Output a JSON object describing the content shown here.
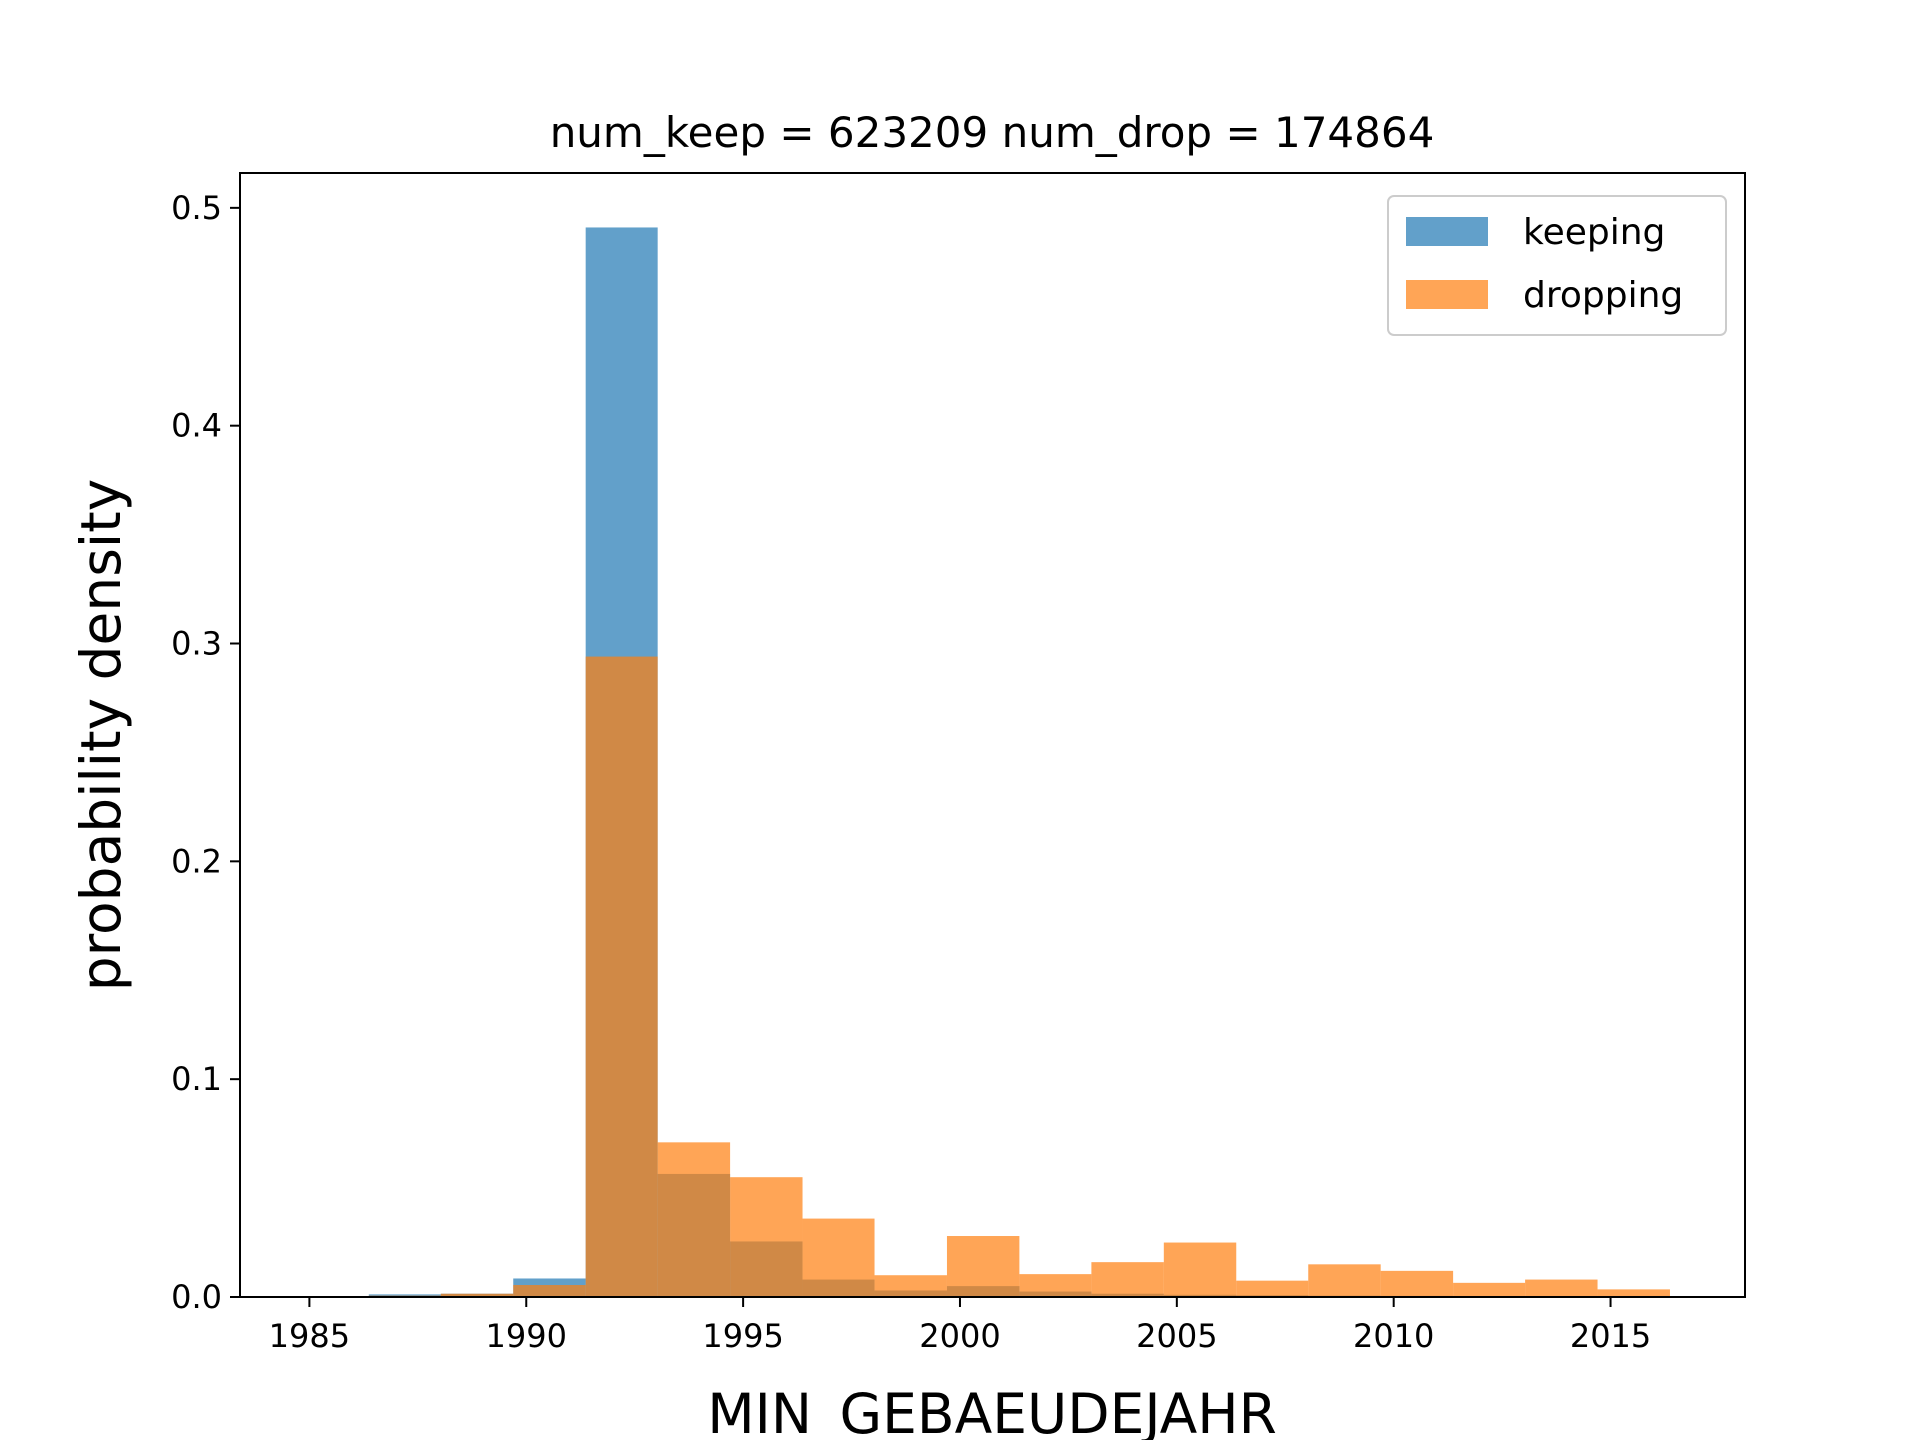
{
  "chart_data": {
    "type": "bar",
    "title": "num_keep = 623209  num_drop = 174864",
    "xlabel": "MIN_GEBAEUDEJAHR",
    "ylabel": "probability density",
    "xlim": [
      1983.4,
      2018.1
    ],
    "ylim": [
      0,
      0.516
    ],
    "xticks": [
      "1985",
      "1990",
      "1995",
      "2000",
      "2005",
      "2010",
      "2015"
    ],
    "yticks": [
      "0.0",
      "0.1",
      "0.2",
      "0.3",
      "0.4",
      "0.5"
    ],
    "grid": false,
    "legend_position": "top-right",
    "bin_edges": [
      1984.7,
      1986.37,
      1988.03,
      1989.7,
      1991.37,
      1993.03,
      1994.7,
      1996.37,
      1998.03,
      1999.7,
      2001.37,
      2003.03,
      2004.7,
      2006.37,
      2008.03,
      2009.7,
      2011.37,
      2013.03,
      2014.7,
      2016.37
    ],
    "series": [
      {
        "name": "keeping",
        "color": "#1f77b4",
        "values": [
          0.0002,
          0.0012,
          0.0015,
          0.0085,
          0.491,
          0.0565,
          0.0255,
          0.008,
          0.003,
          0.005,
          0.0025,
          0.0015,
          0.001,
          0.0008,
          0.0006,
          0.0005,
          0.0004,
          0.0003,
          0.0002
        ]
      },
      {
        "name": "dropping",
        "color": "#ff7f0e",
        "values": [
          0.0001,
          0.0006,
          0.0015,
          0.0055,
          0.294,
          0.071,
          0.055,
          0.036,
          0.01,
          0.028,
          0.0105,
          0.016,
          0.025,
          0.0075,
          0.015,
          0.012,
          0.0065,
          0.008,
          0.0035
        ]
      }
    ]
  }
}
